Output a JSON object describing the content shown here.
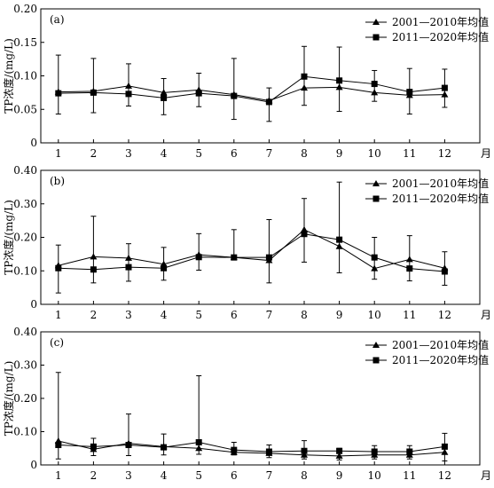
{
  "figure": {
    "month_unit": "月"
  },
  "chart_data": [
    {
      "type": "line",
      "panel_label": "(a)",
      "ylabel": "TP浓度/(mg/L)",
      "x": [
        1,
        2,
        3,
        4,
        5,
        6,
        7,
        8,
        9,
        10,
        11,
        12
      ],
      "xlabel": "月",
      "ylim": [
        0,
        0.2
      ],
      "yticks": [
        "0",
        "0.05",
        "0.10",
        "0.15",
        "0.20"
      ],
      "yticks_values": [
        0,
        0.05,
        0.1,
        0.15,
        0.2
      ],
      "legend_position": "top-right",
      "series": [
        {
          "name": "2001—2010年均值",
          "marker": "triangle",
          "values": [
            0.076,
            0.077,
            0.085,
            0.075,
            0.079,
            0.072,
            0.063,
            0.082,
            0.083,
            0.075,
            0.071,
            0.072
          ]
        },
        {
          "name": "2011—2020年均值",
          "marker": "square",
          "values": [
            0.074,
            0.075,
            0.073,
            0.067,
            0.074,
            0.07,
            0.061,
            0.099,
            0.093,
            0.088,
            0.076,
            0.082
          ],
          "error_high": [
            0.131,
            0.126,
            0.118,
            0.096,
            0.104,
            0.126,
            0.082,
            0.144,
            0.143,
            0.108,
            0.111,
            0.11
          ],
          "error_low": [
            0.043,
            0.045,
            0.055,
            0.042,
            0.054,
            0.035,
            0.032,
            0.056,
            0.047,
            0.062,
            0.043,
            0.053
          ]
        }
      ]
    },
    {
      "type": "line",
      "panel_label": "(b)",
      "ylabel": "TP浓度/(mg/L)",
      "x": [
        1,
        2,
        3,
        4,
        5,
        6,
        7,
        8,
        9,
        10,
        11,
        12
      ],
      "xlabel": "月",
      "ylim": [
        0,
        0.4
      ],
      "yticks": [
        "0",
        "0.10",
        "0.20",
        "0.30",
        "0.40"
      ],
      "yticks_values": [
        0,
        0.1,
        0.2,
        0.3,
        0.4
      ],
      "legend_position": "top-right",
      "series": [
        {
          "name": "2001—2010年均值",
          "marker": "triangle",
          "values": [
            0.116,
            0.142,
            0.138,
            0.12,
            0.148,
            0.14,
            0.131,
            0.223,
            0.173,
            0.107,
            0.134,
            0.108
          ]
        },
        {
          "name": "2011—2020年均值",
          "marker": "square",
          "values": [
            0.108,
            0.104,
            0.111,
            0.108,
            0.141,
            0.14,
            0.14,
            0.21,
            0.193,
            0.14,
            0.107,
            0.098
          ],
          "error_high": [
            0.177,
            0.263,
            0.181,
            0.17,
            0.211,
            0.223,
            0.253,
            0.316,
            0.365,
            0.2,
            0.205,
            0.157
          ],
          "error_low": [
            0.034,
            0.064,
            0.069,
            0.072,
            0.102,
            0.136,
            0.064,
            0.126,
            0.094,
            0.075,
            0.07,
            0.057
          ]
        }
      ]
    },
    {
      "type": "line",
      "panel_label": "(c)",
      "ylabel": "TP浓度/(mg/L)",
      "x": [
        1,
        2,
        3,
        4,
        5,
        6,
        7,
        8,
        9,
        10,
        11,
        12
      ],
      "xlabel": "月",
      "ylim": [
        0,
        0.4
      ],
      "yticks": [
        "0",
        "0.10",
        "0.20",
        "0.30",
        "0.40"
      ],
      "yticks_values": [
        0,
        0.1,
        0.2,
        0.3,
        0.4
      ],
      "legend_position": "top-right",
      "series": [
        {
          "name": "2001—2010年均值",
          "marker": "triangle",
          "values": [
            0.072,
            0.047,
            0.065,
            0.055,
            0.05,
            0.038,
            0.035,
            0.03,
            0.027,
            0.03,
            0.03,
            0.038
          ]
        },
        {
          "name": "2011—2020年均值",
          "marker": "square",
          "values": [
            0.06,
            0.055,
            0.06,
            0.053,
            0.068,
            0.045,
            0.04,
            0.042,
            0.042,
            0.04,
            0.04,
            0.055
          ],
          "error_high": [
            0.278,
            0.08,
            0.153,
            0.093,
            0.268,
            0.068,
            0.06,
            0.073,
            0.05,
            0.058,
            0.058,
            0.095
          ],
          "error_low": [
            0.018,
            0.028,
            0.028,
            0.03,
            0.032,
            0.03,
            0.022,
            0.018,
            0.015,
            0.018,
            0.018,
            0.012
          ]
        }
      ]
    }
  ]
}
